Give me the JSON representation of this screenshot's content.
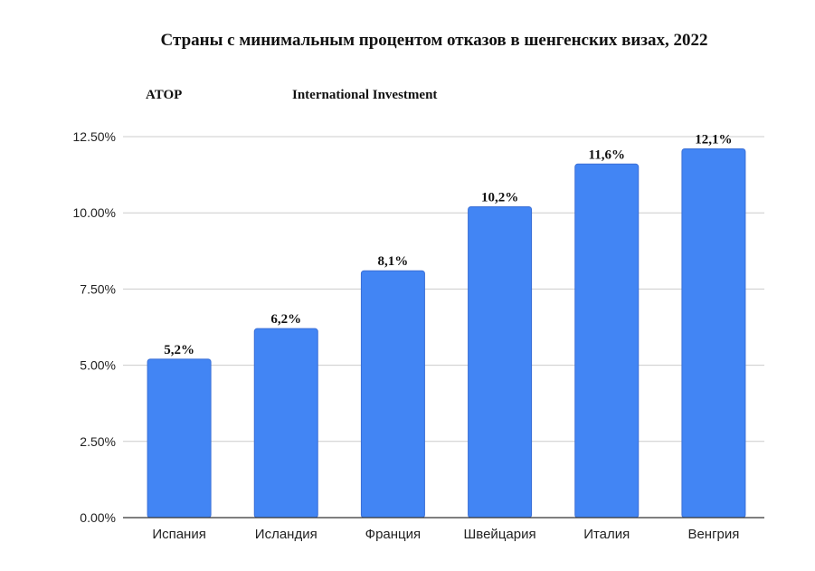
{
  "chart_data": {
    "type": "bar",
    "title": "Страны с минимальным процентом отказов в шенгенских визах, 2022",
    "sources": [
      "ATOP",
      "International Investment"
    ],
    "categories": [
      "Испания",
      "Исландия",
      "Франция",
      "Швейцария",
      "Италия",
      "Венгрия"
    ],
    "values": [
      5.2,
      6.2,
      8.1,
      10.2,
      11.6,
      12.1
    ],
    "data_labels": [
      "5,2%",
      "6,2%",
      "8,1%",
      "10,2%",
      "11,6%",
      "12,1%"
    ],
    "yticks": [
      0,
      2.5,
      5,
      7.5,
      10,
      12.5
    ],
    "ytick_labels": [
      "0.00%",
      "2.50%",
      "5.00%",
      "7.50%",
      "10.00%",
      "12.50%"
    ],
    "ylim": [
      0,
      12.5
    ],
    "grid": true,
    "legend": "none",
    "bar_color": "#4285f4",
    "bar_edge_color": "#3a6fd6"
  }
}
